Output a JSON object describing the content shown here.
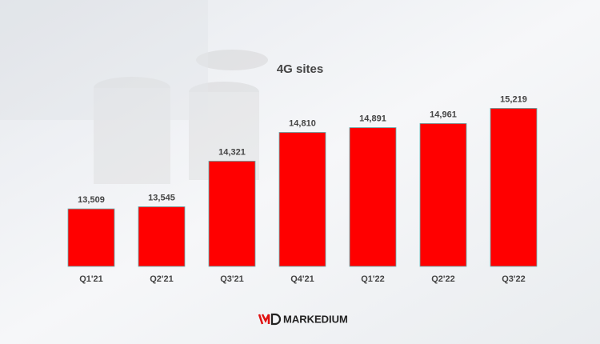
{
  "chart_data": {
    "type": "bar",
    "title": "4G sites",
    "categories": [
      "Q1'21",
      "Q2'21",
      "Q3'21",
      "Q4'21",
      "Q1'22",
      "Q2'22",
      "Q3'22"
    ],
    "values": [
      13509,
      13545,
      14321,
      14810,
      14891,
      14961,
      15219
    ],
    "value_labels": [
      "13,509",
      "13,545",
      "14,321",
      "14,810",
      "14,891",
      "14,961",
      "15,219"
    ],
    "color": "#ff0000",
    "ylim": [
      12530,
      16000
    ]
  },
  "footer": {
    "brand": "MARKEDIUM"
  }
}
